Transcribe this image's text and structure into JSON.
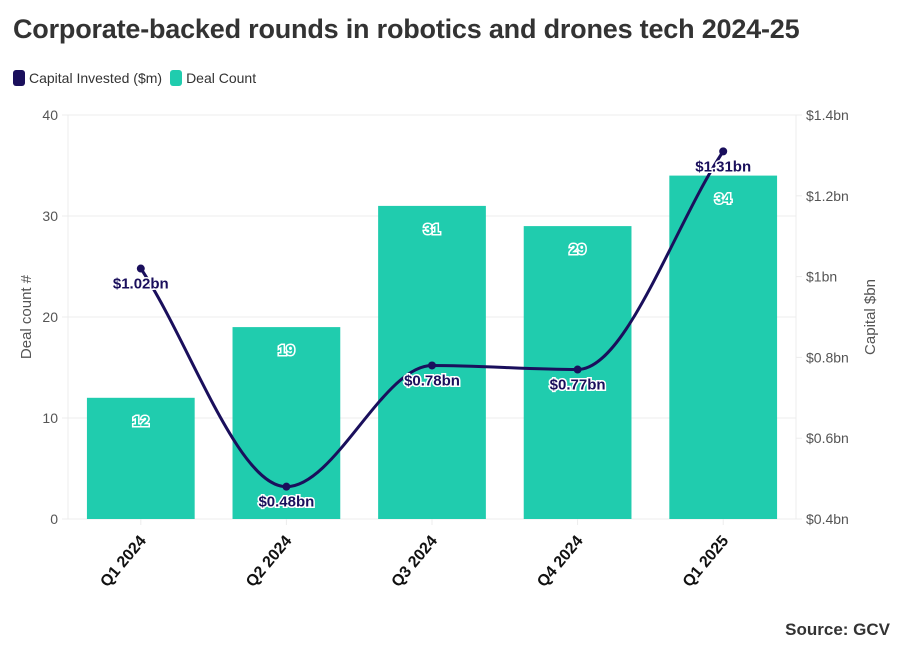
{
  "chart_data": {
    "type": "bar",
    "title": "Corporate-backed rounds in robotics and drones tech 2024-25",
    "categories": [
      "Q1 2024",
      "Q2 2024",
      "Q3 2024",
      "Q4 2024",
      "Q1 2025"
    ],
    "series": [
      {
        "name": "Deal Count",
        "type": "bar",
        "axis": "left",
        "color": "#20ccae",
        "values": [
          12,
          19,
          31,
          29,
          34
        ],
        "labels": [
          "12",
          "19",
          "31",
          "29",
          "34"
        ]
      },
      {
        "name": "Capital Invested ($m)",
        "type": "line",
        "axis": "right",
        "color": "#1a0f5c",
        "values": [
          1.02,
          0.48,
          0.78,
          0.77,
          1.31
        ],
        "labels": [
          "$1.02bn",
          "$0.48bn",
          "$0.78bn",
          "$0.77bn",
          "$1.31bn"
        ]
      }
    ],
    "ylabel": "Deal count #",
    "ylim": [
      0,
      40
    ],
    "yticks": [
      "0",
      "10",
      "20",
      "30",
      "40"
    ],
    "ytick_values": [
      0,
      10,
      20,
      30,
      40
    ],
    "y2label": "Capital $bn",
    "y2lim": [
      0.4,
      1.4
    ],
    "y2ticks": [
      "$0.4bn",
      "$0.6bn",
      "$0.8bn",
      "$1bn",
      "$1.2bn",
      "$1.4bn"
    ],
    "y2tick_values": [
      0.4,
      0.6,
      0.8,
      1.0,
      1.2,
      1.4
    ],
    "grid": true,
    "legend_position": "top-left",
    "source": "Source: GCV"
  },
  "legend": [
    {
      "label": "Capital Invested ($m)",
      "color": "#1a0f5c"
    },
    {
      "label": "Deal Count",
      "color": "#20ccae"
    }
  ]
}
